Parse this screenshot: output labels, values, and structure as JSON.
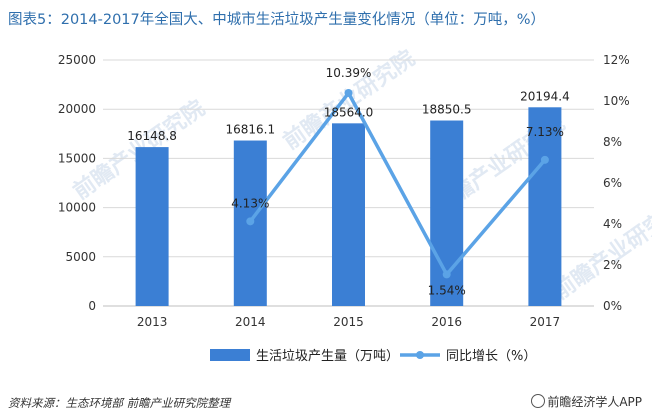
{
  "header": {
    "title": "图表5：2014-2017年全国大、中城市生活垃圾产生量变化情况（单位：万吨，%）"
  },
  "footer": {
    "source": "资料来源：生态环境部 前瞻产业研究院整理",
    "brand": "前瞻经济学人APP"
  },
  "colors": {
    "bar": "#3b7fd4",
    "line": "#5ba3e6",
    "grid": "#d9d9d9",
    "title": "#2f6fad"
  },
  "chart_data": {
    "type": "bar",
    "title": "图表5：2014-2017年全国大、中城市生活垃圾产生量变化情况（单位：万吨，%）",
    "categories": [
      "2013",
      "2014",
      "2015",
      "2016",
      "2017"
    ],
    "series": [
      {
        "name": "生活垃圾产生量（万吨）",
        "type": "bar",
        "axis": "left",
        "values": [
          16148.8,
          16816.1,
          18564.0,
          18850.5,
          20194.4
        ],
        "labels": [
          "16148.8",
          "16816.1",
          "18564.0",
          "18850.5",
          "20194.4"
        ]
      },
      {
        "name": "同比增长（%）",
        "type": "line",
        "axis": "right",
        "points": [
          {
            "x": "2014",
            "y": 4.13,
            "label": "4.13%"
          },
          {
            "x": "2015",
            "y": 10.39,
            "label": "10.39%"
          },
          {
            "x": "2016",
            "y": 1.54,
            "label": "1.54%"
          },
          {
            "x": "2017",
            "y": 7.13,
            "label": "7.13%"
          }
        ]
      }
    ],
    "yleft": {
      "min": 0,
      "max": 25000,
      "ticks": [
        "0",
        "5000",
        "10000",
        "15000",
        "20000",
        "25000"
      ]
    },
    "yright": {
      "min": 0,
      "max": 12,
      "ticks": [
        "0%",
        "2%",
        "4%",
        "6%",
        "8%",
        "10%",
        "12%"
      ]
    },
    "grid": true,
    "legend": "bottom",
    "watermark": "前瞻产业研究院"
  }
}
